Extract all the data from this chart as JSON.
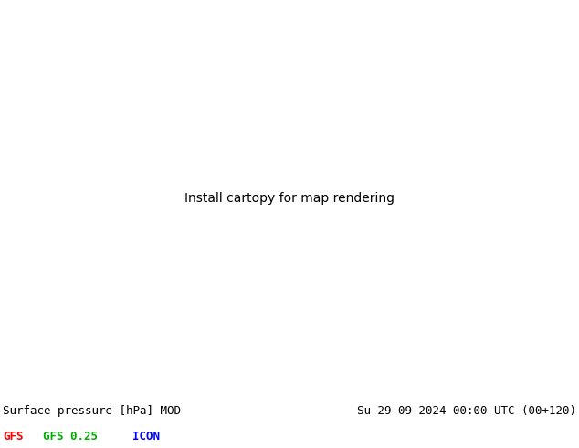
{
  "title_left": "Surface pressure [hPa] MOD",
  "title_right": "Su 29-09-2024 00:00 UTC (00+120)",
  "legend_items": [
    {
      "label": "GFS",
      "color": "#ff0000"
    },
    {
      "label": "GFS 0.25",
      "color": "#00aa00"
    },
    {
      "label": "ICON",
      "color": "#0000ff"
    }
  ],
  "background_color": "#ffffff",
  "title_fontsize": 9,
  "legend_fontsize": 9,
  "figure_width": 6.34,
  "figure_height": 4.9,
  "dpi": 100,
  "map_extent": [
    25,
    145,
    5,
    75
  ],
  "blue_color": "#0000cc",
  "green_color": "#008800",
  "red_color": "#cc0000",
  "cyan_color": "#00aaaa"
}
